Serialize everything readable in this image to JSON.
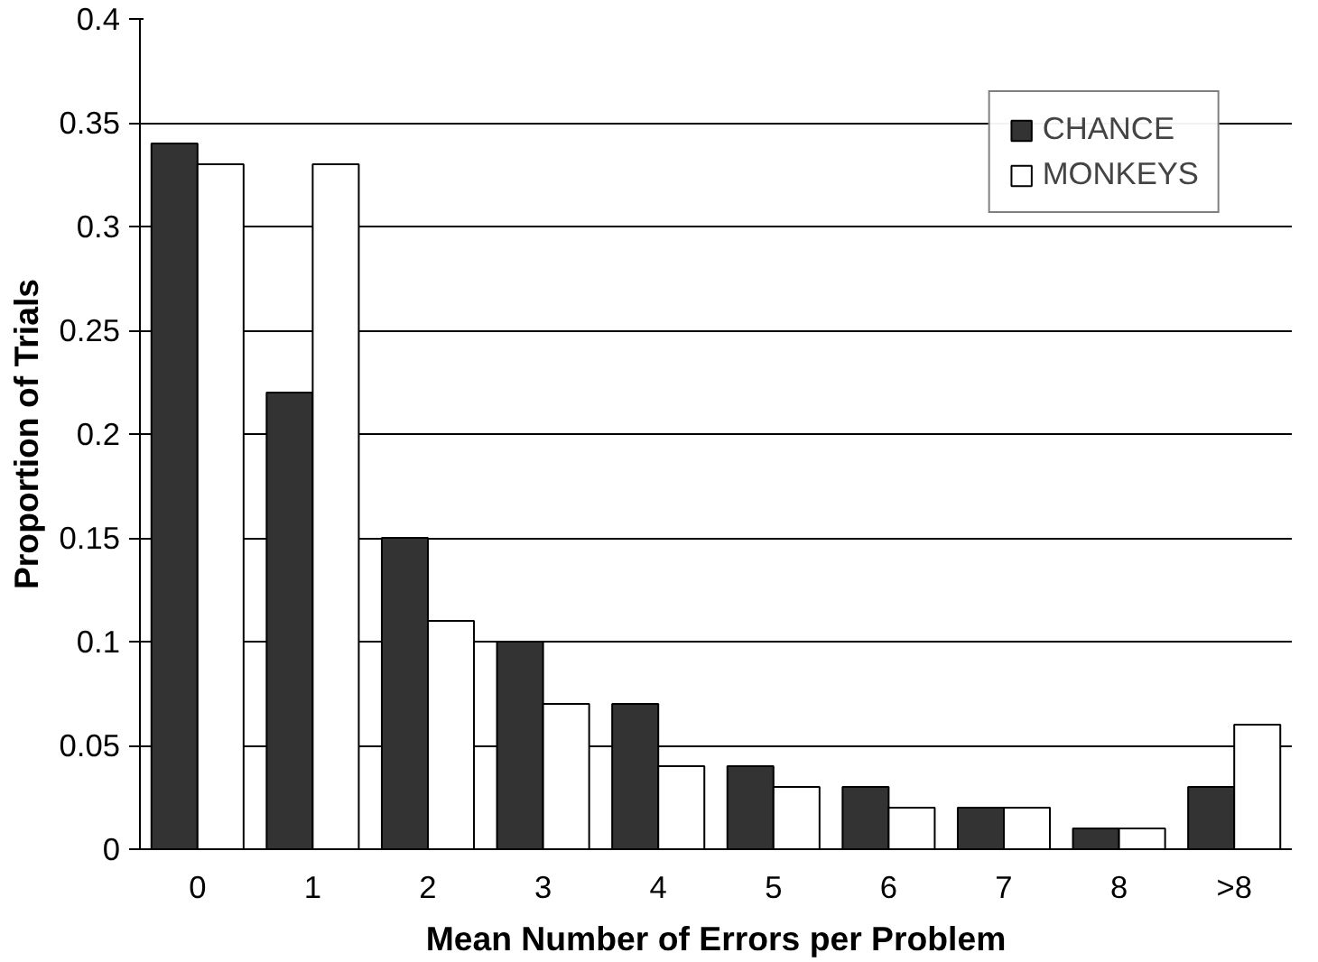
{
  "chart_data": {
    "type": "bar",
    "xlabel": "Mean Number of Errors per Problem",
    "ylabel": "Proportion of Trials",
    "categories": [
      "0",
      "1",
      "2",
      "3",
      "4",
      "5",
      "6",
      "7",
      "8",
      ">8"
    ],
    "series": [
      {
        "name": "CHANCE",
        "color": "#333333",
        "values": [
          0.34,
          0.22,
          0.15,
          0.1,
          0.07,
          0.04,
          0.03,
          0.02,
          0.01,
          0.03
        ]
      },
      {
        "name": "MONKEYS",
        "color": "#ffffff",
        "values": [
          0.33,
          0.33,
          0.11,
          0.07,
          0.04,
          0.03,
          0.02,
          0.02,
          0.01,
          0.06
        ]
      }
    ],
    "ylim": [
      0,
      0.4
    ],
    "yticks": [
      0,
      0.05,
      0.1,
      0.15,
      0.2,
      0.25,
      0.3,
      0.35,
      0.4
    ],
    "grid": "y",
    "legend": "top right"
  }
}
